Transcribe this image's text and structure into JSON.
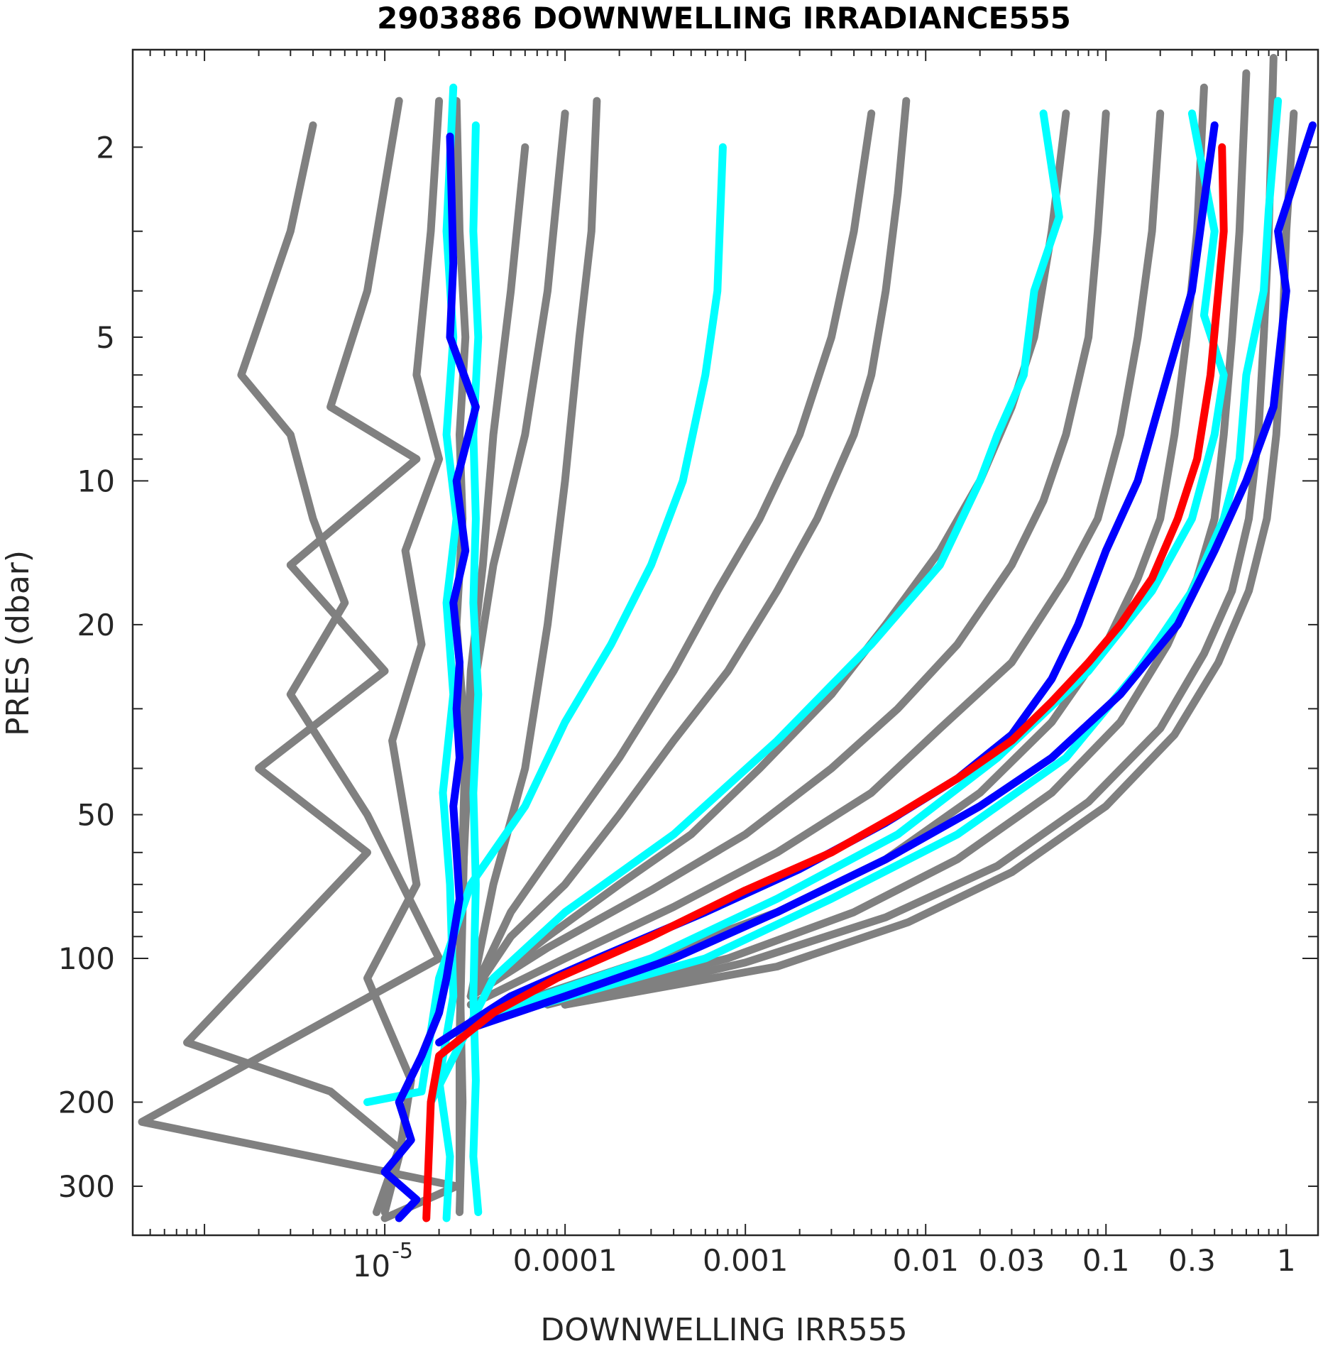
{
  "chart_data": {
    "type": "line",
    "title": "2903886  DOWNWELLING IRRADIANCE555",
    "xlabel": "DOWNWELLING IRR555",
    "ylabel": "PRES (dbar)",
    "xscale": "log",
    "yscale": "log",
    "y_reversed": true,
    "xlim": [
      4e-07,
      1.5
    ],
    "ylim": [
      1.25,
      380
    ],
    "x_tick_labels": [
      {
        "value": 1e-05,
        "base": "10",
        "exp": "-5"
      },
      {
        "value": 0.0001,
        "label": "0.0001"
      },
      {
        "value": 0.001,
        "label": "0.001"
      },
      {
        "value": 0.01,
        "label": "0.01"
      },
      {
        "value": 0.03,
        "label": "0.03"
      },
      {
        "value": 0.1,
        "label": "0.1"
      },
      {
        "value": 0.3,
        "label": "0.3"
      },
      {
        "value": 1,
        "label": "1"
      }
    ],
    "y_tick_labels": [
      {
        "value": 2,
        "label": "2"
      },
      {
        "value": 5,
        "label": "5"
      },
      {
        "value": 10,
        "label": "10"
      },
      {
        "value": 20,
        "label": "20"
      },
      {
        "value": 50,
        "label": "50"
      },
      {
        "value": 100,
        "label": "100"
      },
      {
        "value": 200,
        "label": "200"
      },
      {
        "value": 300,
        "label": "300"
      }
    ],
    "grid": false,
    "colors": {
      "gray": "#808080",
      "cyan": "#00FFFF",
      "blue": "#0000FF",
      "red": "#FF0000"
    },
    "series": [
      {
        "color": "#808080",
        "x": [
          4e-06,
          3e-06,
          1.6e-06,
          3e-06,
          4e-06,
          6e-06,
          3e-06,
          8e-06,
          2e-05,
          4.5e-07,
          2.5e-05,
          1e-05
        ],
        "y": [
          1.8,
          3,
          6,
          8,
          12,
          18,
          28,
          50,
          100,
          220,
          300,
          350
        ]
      },
      {
        "color": "#808080",
        "x": [
          1.2e-05,
          8e-06,
          5e-06,
          1.5e-05,
          3e-06,
          1e-05,
          2e-06,
          8e-06,
          8e-07,
          5e-06,
          1.2e-05,
          9e-06
        ],
        "y": [
          1.6,
          4,
          7,
          9,
          15,
          25,
          40,
          60,
          150,
          190,
          250,
          340
        ]
      },
      {
        "color": "#808080",
        "x": [
          2e-05,
          1.8e-05,
          1.5e-05,
          2e-05,
          1.3e-05,
          1.6e-05,
          1.1e-05,
          1.5e-05,
          8e-06,
          1.4e-05,
          1.2e-05,
          1e-05
        ],
        "y": [
          1.6,
          3,
          6,
          9,
          14,
          22,
          35,
          70,
          110,
          180,
          260,
          340
        ]
      },
      {
        "color": "#808080",
        "x": [
          2.5e-05,
          2.6e-05,
          2.8e-05,
          2.6e-05,
          2.7e-05,
          2.5e-05,
          2.8e-05,
          2.7e-05,
          2.6e-05,
          2.7e-05,
          2.6e-05
        ],
        "y": [
          1.6,
          3,
          5,
          8,
          12,
          20,
          35,
          60,
          100,
          200,
          340
        ]
      },
      {
        "color": "#808080",
        "x": [
          6e-05,
          5e-05,
          4e-05,
          3.5e-05,
          3e-05,
          2.8e-05,
          2.7e-05,
          2.6e-05,
          2.6e-05
        ],
        "y": [
          2,
          4,
          8,
          15,
          25,
          45,
          80,
          150,
          300
        ]
      },
      {
        "color": "#808080",
        "x": [
          0.0001,
          8e-05,
          6e-05,
          4e-05,
          3e-05,
          2.7e-05,
          2.6e-05
        ],
        "y": [
          1.7,
          4,
          8,
          15,
          30,
          70,
          150
        ]
      },
      {
        "color": "#808080",
        "x": [
          0.00015,
          0.00014,
          0.00012,
          0.0001,
          8e-05,
          6e-05,
          4e-05,
          3e-05
        ],
        "y": [
          1.6,
          3,
          5,
          10,
          20,
          40,
          70,
          120
        ]
      },
      {
        "color": "#808080",
        "x": [
          0.005,
          0.004,
          0.003,
          0.002,
          0.0012,
          0.0007,
          0.0004,
          0.0002,
          0.0001,
          5e-05,
          3e-05
        ],
        "y": [
          1.7,
          3,
          5,
          8,
          12,
          17,
          25,
          38,
          55,
          80,
          120
        ]
      },
      {
        "color": "#808080",
        "x": [
          0.0078,
          0.007,
          0.006,
          0.005,
          0.004,
          0.0025,
          0.0015,
          0.0008,
          0.0004,
          0.0002,
          0.0001,
          5e-05,
          3e-05
        ],
        "y": [
          1.6,
          2.5,
          4,
          6,
          8,
          12,
          17,
          25,
          35,
          50,
          70,
          90,
          120
        ]
      },
      {
        "color": "#808080",
        "x": [
          0.06,
          0.05,
          0.04,
          0.03,
          0.02,
          0.012,
          0.006,
          0.003,
          0.0012,
          0.0005,
          0.0002,
          8e-05,
          3e-05
        ],
        "y": [
          1.7,
          3,
          5,
          7,
          10,
          14,
          20,
          28,
          40,
          55,
          70,
          90,
          120
        ]
      },
      {
        "color": "#808080",
        "x": [
          0.1,
          0.09,
          0.08,
          0.06,
          0.045,
          0.03,
          0.015,
          0.007,
          0.003,
          0.001,
          0.0003,
          8e-05,
          3e-05
        ],
        "y": [
          1.7,
          3,
          5,
          8,
          11,
          15,
          22,
          30,
          40,
          55,
          72,
          95,
          120
        ]
      },
      {
        "color": "#808080",
        "x": [
          0.2,
          0.18,
          0.15,
          0.12,
          0.09,
          0.06,
          0.03,
          0.012,
          0.005,
          0.0015,
          0.0004,
          0.0001,
          3e-05
        ],
        "y": [
          1.7,
          3,
          5,
          8,
          12,
          16,
          24,
          33,
          45,
          60,
          78,
          100,
          125
        ]
      },
      {
        "color": "#808080",
        "x": [
          0.35,
          0.32,
          0.28,
          0.24,
          0.2,
          0.15,
          0.1,
          0.05,
          0.02,
          0.006,
          0.0015,
          0.0003,
          5e-05
        ],
        "y": [
          1.5,
          3,
          5,
          8,
          12,
          16,
          22,
          32,
          45,
          62,
          80,
          100,
          125
        ]
      },
      {
        "color": "#808080",
        "x": [
          0.6,
          0.55,
          0.5,
          0.45,
          0.4,
          0.32,
          0.22,
          0.12,
          0.05,
          0.015,
          0.004,
          0.0008,
          8e-05
        ],
        "y": [
          1.4,
          3,
          5,
          8,
          12,
          16,
          22,
          32,
          45,
          62,
          80,
          100,
          125
        ]
      },
      {
        "color": "#808080",
        "x": [
          0.85,
          0.8,
          0.75,
          0.7,
          0.62,
          0.5,
          0.35,
          0.2,
          0.08,
          0.025,
          0.006,
          0.001,
          0.0001
        ],
        "y": [
          1.3,
          3,
          5,
          8,
          12,
          17,
          23,
          33,
          47,
          64,
          82,
          102,
          125
        ]
      },
      {
        "color": "#808080",
        "x": [
          1.1,
          1,
          0.95,
          0.88,
          0.78,
          0.62,
          0.42,
          0.24,
          0.1,
          0.03,
          0.008,
          0.0015,
          0.0001
        ],
        "y": [
          1.7,
          3,
          5,
          8,
          12,
          17,
          24,
          34,
          48,
          66,
          84,
          104,
          125
        ]
      },
      {
        "color": "#00FFFF",
        "x": [
          2.4e-05,
          2.2e-05,
          2.4e-05,
          2.2e-05,
          2.5e-05,
          2.2e-05,
          2.4e-05,
          2.1e-05,
          2.3e-05,
          2.4e-05,
          2e-05,
          2.3e-05,
          2.2e-05
        ],
        "y": [
          1.5,
          3,
          5,
          8,
          12,
          18,
          28,
          45,
          70,
          120,
          180,
          260,
          350
        ]
      },
      {
        "color": "#00FFFF",
        "x": [
          3.2e-05,
          3.1e-05,
          3.3e-05,
          3.1e-05,
          3.2e-05,
          3.1e-05,
          3.3e-05,
          3.1e-05,
          3.2e-05,
          3.1e-05,
          3.2e-05,
          3.1e-05,
          3.3e-05
        ],
        "y": [
          1.8,
          3,
          5,
          8,
          12,
          18,
          28,
          45,
          70,
          120,
          180,
          260,
          340
        ]
      },
      {
        "color": "#00FFFF",
        "x": [
          0.00075,
          0.0007,
          0.0006,
          0.00045,
          0.0003,
          0.00018,
          0.0001,
          6e-05,
          3e-05,
          2e-05,
          1.6e-05,
          8e-06
        ],
        "y": [
          2,
          4,
          6,
          10,
          15,
          22,
          32,
          48,
          70,
          110,
          190,
          200
        ]
      },
      {
        "color": "#00FFFF",
        "x": [
          0.045,
          0.055,
          0.04,
          0.035,
          0.025,
          0.02,
          0.012,
          0.005,
          0.0015,
          0.0004,
          0.0001,
          4e-05,
          1.8e-05
        ],
        "y": [
          1.7,
          2.8,
          4,
          6,
          8,
          10,
          15,
          22,
          35,
          55,
          80,
          110,
          200
        ]
      },
      {
        "color": "#00FFFF",
        "x": [
          0.3,
          0.4,
          0.35,
          0.45,
          0.4,
          0.3,
          0.18,
          0.08,
          0.025,
          0.007,
          0.0015,
          0.0003,
          4e-05
        ],
        "y": [
          1.7,
          3,
          4.5,
          6,
          8,
          12,
          17,
          25,
          38,
          55,
          75,
          100,
          130
        ]
      },
      {
        "color": "#00FFFF",
        "x": [
          0.9,
          0.8,
          0.75,
          0.6,
          0.55,
          0.45,
          0.3,
          0.15,
          0.06,
          0.015,
          0.003,
          0.0006,
          5e-05
        ],
        "y": [
          1.6,
          2.7,
          4,
          6,
          9,
          12,
          17,
          25,
          38,
          55,
          75,
          100,
          130
        ]
      },
      {
        "color": "#0000FF",
        "x": [
          2.3e-05,
          2.4e-05,
          2.3e-05,
          3.2e-05,
          2.5e-05,
          2.8e-05,
          2.4e-05,
          2.6e-05,
          2.5e-05,
          2.6e-05,
          2.4e-05,
          2.5e-05,
          2.6e-05,
          2.4e-05,
          2.2e-05,
          2e-05,
          1.6e-05,
          1.2e-05,
          1.4e-05,
          1e-05,
          1.5e-05,
          1.2e-05
        ],
        "y": [
          1.9,
          3.5,
          5,
          7,
          10,
          14,
          18,
          24,
          30,
          38,
          48,
          60,
          75,
          90,
          110,
          130,
          160,
          200,
          240,
          280,
          320,
          350
        ]
      },
      {
        "color": "#0000FF",
        "x": [
          0.4,
          0.3,
          0.22,
          0.15,
          0.1,
          0.07,
          0.05,
          0.03,
          0.015,
          0.006,
          0.002,
          0.0006,
          0.00015,
          5e-05,
          2e-05
        ],
        "y": [
          1.8,
          4,
          6,
          10,
          14,
          20,
          26,
          34,
          42,
          52,
          65,
          80,
          100,
          120,
          150
        ]
      },
      {
        "color": "#0000FF",
        "x": [
          1.4,
          0.9,
          1,
          0.85,
          0.6,
          0.4,
          0.25,
          0.12,
          0.05,
          0.02,
          0.006,
          0.0015,
          0.0004,
          0.0001,
          3e-05
        ],
        "y": [
          1.8,
          3,
          4,
          7,
          10,
          14,
          20,
          28,
          38,
          48,
          62,
          80,
          100,
          120,
          140
        ]
      },
      {
        "color": "#FF0000",
        "x": [
          0.44,
          0.45,
          0.42,
          0.38,
          0.32,
          0.25,
          0.18,
          0.12,
          0.08,
          0.05,
          0.03,
          0.015,
          0.007,
          0.003,
          0.001,
          0.0003,
          9e-05,
          4e-05,
          2e-05,
          1.8e-05,
          1.7e-05
        ],
        "y": [
          2,
          3,
          4,
          6,
          9,
          12,
          16,
          20,
          24,
          29,
          35,
          42,
          50,
          60,
          72,
          90,
          110,
          130,
          160,
          200,
          350
        ]
      }
    ]
  }
}
